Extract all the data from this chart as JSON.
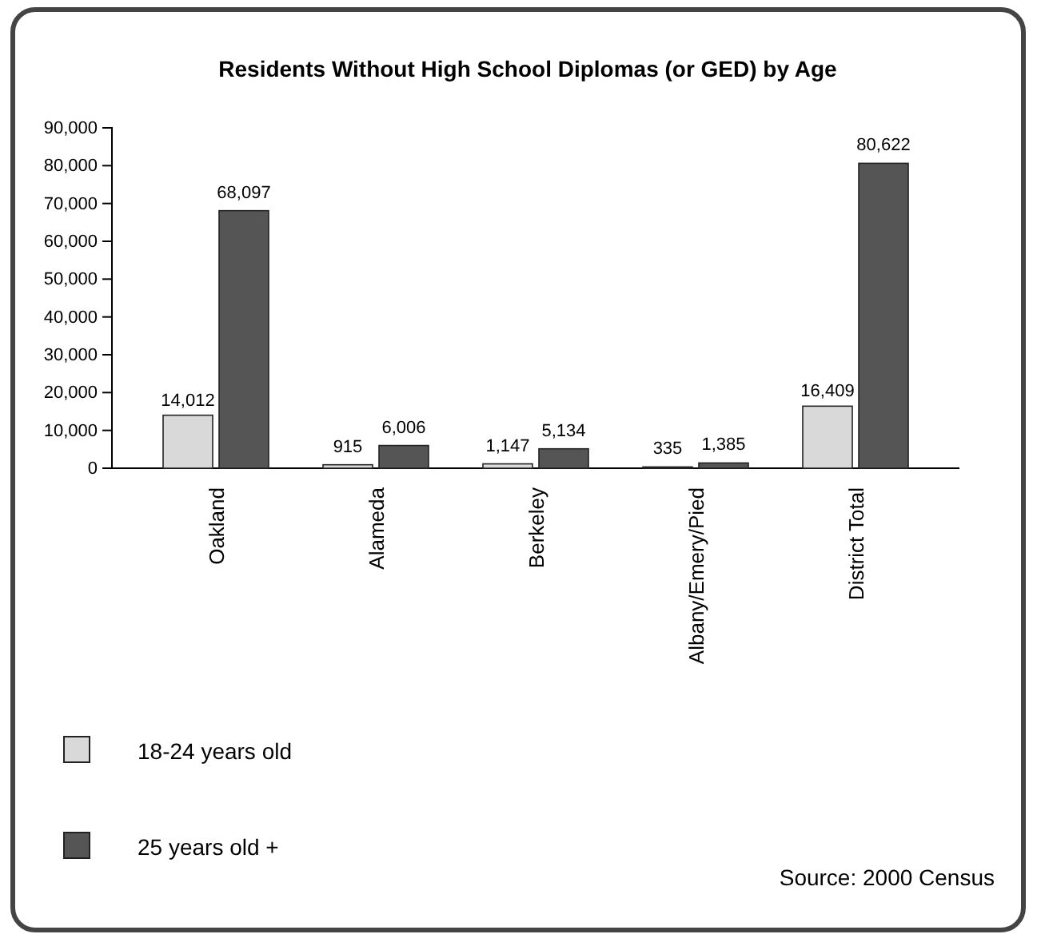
{
  "chart_data": {
    "type": "bar",
    "title": "Residents Without High School Diplomas (or GED) by Age",
    "categories": [
      "Oakland",
      "Alameda",
      "Berkeley",
      "Albany/Emery/Pied",
      "District Total"
    ],
    "series": [
      {
        "name": "18-24 years old",
        "color": "#d9d9d9",
        "values": [
          14012,
          915,
          1147,
          335,
          16409
        ],
        "value_labels": [
          "14,012",
          "915",
          "1,147",
          "335",
          "16,409"
        ]
      },
      {
        "name": "25 years old +",
        "color": "#555555",
        "values": [
          68097,
          6006,
          5134,
          1385,
          80622
        ],
        "value_labels": [
          "68,097",
          "6,006",
          "5,134",
          "1,385",
          "80,622"
        ]
      }
    ],
    "ylim": [
      0,
      90000
    ],
    "yticks": [
      {
        "value": 0,
        "label": "0"
      },
      {
        "value": 10000,
        "label": "10,000"
      },
      {
        "value": 20000,
        "label": "20,000"
      },
      {
        "value": 30000,
        "label": "30,000"
      },
      {
        "value": 40000,
        "label": "40,000"
      },
      {
        "value": 50000,
        "label": "50,000"
      },
      {
        "value": 60000,
        "label": "60,000"
      },
      {
        "value": 70000,
        "label": "70,000"
      },
      {
        "value": 80000,
        "label": "80,000"
      },
      {
        "value": 90000,
        "label": "90,000"
      }
    ],
    "grid": false,
    "legend": "bottom left",
    "annotations": [
      "Source: 2000 Census"
    ]
  }
}
